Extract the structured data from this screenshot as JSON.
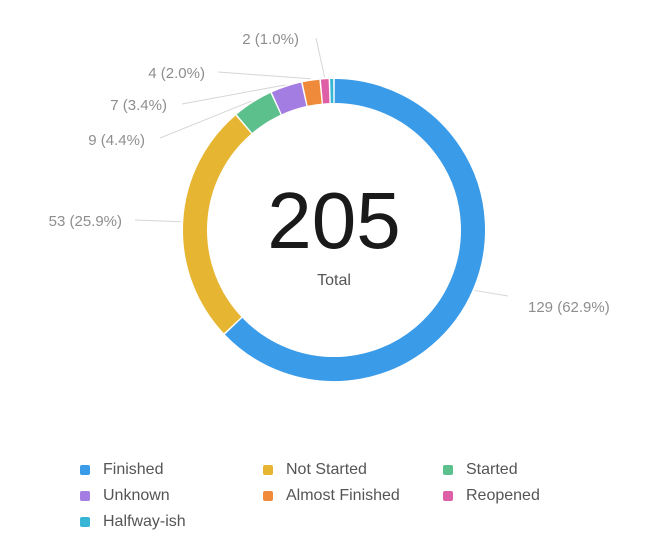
{
  "chart_data": {
    "type": "donut",
    "total": 205,
    "total_label": "Total",
    "slices": [
      {
        "name": "Finished",
        "value": 129,
        "label": "129 (62.9%)",
        "color": "#3a9be9"
      },
      {
        "name": "Not Started",
        "value": 53,
        "label": "53 (25.9%)",
        "color": "#e6b531"
      },
      {
        "name": "Started",
        "value": 9,
        "label": "9 (4.4%)",
        "color": "#5bc08b"
      },
      {
        "name": "Unknown",
        "value": 7,
        "label": "7 (3.4%)",
        "color": "#a47de2"
      },
      {
        "name": "Almost Finished",
        "value": 4,
        "label": "4 (2.0%)",
        "color": "#ee8a3a"
      },
      {
        "name": "Reopened",
        "value": 2,
        "label": "2 (1.0%)",
        "color": "#df5fa6"
      },
      {
        "name": "Halfway-ish",
        "value": 1,
        "label": "",
        "color": "#36b6d4"
      }
    ],
    "legend_position": "bottom"
  }
}
